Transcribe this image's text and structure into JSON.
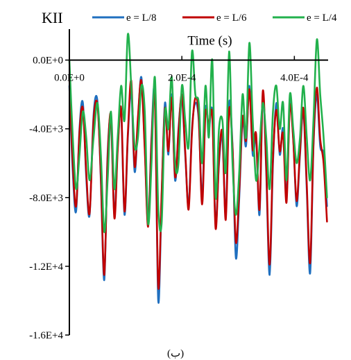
{
  "chart_data": {
    "type": "line",
    "ylabel": "KII",
    "xlabel": "Time (s)",
    "caption": "(ب)",
    "xlim": [
      0,
      0.00046
    ],
    "ylim": [
      -16000,
      1800
    ],
    "x_ticks": [
      {
        "value": 0,
        "label": "0.0E+0"
      },
      {
        "value": 0.0002,
        "label": "2.0E-4"
      },
      {
        "value": 0.0004,
        "label": "4.0E-4"
      }
    ],
    "y_ticks": [
      {
        "value": 0,
        "label": "0.0E+0"
      },
      {
        "value": -4000,
        "label": "-4.0E+3"
      },
      {
        "value": -8000,
        "label": "-8.0E+3"
      },
      {
        "value": -12000,
        "label": "-1.2E+4"
      },
      {
        "value": -16000,
        "label": "-1.6E+4"
      }
    ],
    "legend_position": "top",
    "grid": false,
    "series": [
      {
        "name": "e = L/8",
        "color": "#1f6fbf",
        "x": [
          0,
          6e-06,
          1.2e-05,
          1.8e-05,
          2.4e-05,
          3e-05,
          3.6e-05,
          4.3e-05,
          5e-05,
          5.6e-05,
          6.2e-05,
          6.8e-05,
          7.4e-05,
          8e-05,
          8.6e-05,
          9.2e-05,
          9.8e-05,
          0.000104,
          0.00011,
          0.000116,
          0.000122,
          0.000128,
          0.000134,
          0.00014,
          0.000146,
          0.000152,
          0.000158,
          0.000164,
          0.00017,
          0.000176,
          0.000182,
          0.000188,
          0.000194,
          0.0002,
          0.000206,
          0.000212,
          0.000218,
          0.000224,
          0.00023,
          0.000236,
          0.000242,
          0.000248,
          0.000254,
          0.00026,
          0.000266,
          0.000272,
          0.000278,
          0.000284,
          0.00029,
          0.000296,
          0.000302,
          0.000308,
          0.000314,
          0.00032,
          0.000326,
          0.000332,
          0.000338,
          0.000344,
          0.00035,
          0.000356,
          0.000362,
          0.000368,
          0.000374,
          0.00038,
          0.000386,
          0.000392,
          0.000398,
          0.000404,
          0.00041,
          0.000416,
          0.000422,
          0.000428,
          0.000434,
          0.00044,
          0.000446,
          0.000452,
          0.000458
        ],
        "y": [
          -1500,
          -6500,
          -8800,
          -4000,
          -2500,
          -6800,
          -9000,
          -3200,
          -2400,
          -7000,
          -12800,
          -5500,
          -3500,
          -9000,
          -5000,
          -3000,
          -9000,
          -4500,
          -1800,
          -6500,
          -3500,
          -1000,
          -5000,
          -9500,
          -4500,
          -2000,
          -14000,
          -8000,
          -2500,
          -5500,
          -2000,
          -7000,
          -4000,
          -2200,
          -5500,
          -8500,
          -4000,
          -2500,
          -3500,
          -8000,
          -2800,
          -4000,
          -3000,
          -9500,
          -6000,
          -4500,
          -9000,
          -2500,
          -5000,
          -11500,
          -8000,
          -3500,
          -5000,
          -1500,
          -5500,
          -4500,
          -9000,
          -2000,
          -6500,
          -12500,
          -6000,
          -2500,
          -5500,
          -4000,
          -8000,
          -2500,
          -4500,
          -8500,
          -5500,
          -3000,
          -7500,
          -12400,
          -5000,
          -2000,
          -5000,
          -5500,
          -8500
        ]
      },
      {
        "name": "e = L/6",
        "color": "#c00000",
        "x": [
          0,
          6e-06,
          1.2e-05,
          1.8e-05,
          2.4e-05,
          3e-05,
          3.6e-05,
          4.3e-05,
          5e-05,
          5.6e-05,
          6.2e-05,
          6.8e-05,
          7.4e-05,
          8e-05,
          8.6e-05,
          9.2e-05,
          9.8e-05,
          0.000104,
          0.00011,
          0.000116,
          0.000122,
          0.000128,
          0.000134,
          0.00014,
          0.000146,
          0.000152,
          0.000158,
          0.000164,
          0.00017,
          0.000176,
          0.000182,
          0.000188,
          0.000194,
          0.0002,
          0.000206,
          0.000212,
          0.000218,
          0.000224,
          0.00023,
          0.000236,
          0.000242,
          0.000248,
          0.000254,
          0.00026,
          0.000266,
          0.000272,
          0.000278,
          0.000284,
          0.00029,
          0.000296,
          0.000302,
          0.000308,
          0.000314,
          0.00032,
          0.000326,
          0.000332,
          0.000338,
          0.000344,
          0.00035,
          0.000356,
          0.000362,
          0.000368,
          0.000374,
          0.00038,
          0.000386,
          0.000392,
          0.000398,
          0.000404,
          0.00041,
          0.000416,
          0.000422,
          0.000428,
          0.000434,
          0.00044,
          0.000446,
          0.000452,
          0.000458
        ],
        "y": [
          -1000,
          -6000,
          -8500,
          -4200,
          -2800,
          -6500,
          -8900,
          -3500,
          -2600,
          -6800,
          -12500,
          -5800,
          -3200,
          -9200,
          -5200,
          -2800,
          -8800,
          -4300,
          -1200,
          -6200,
          -3300,
          -1200,
          -5200,
          -9700,
          -4800,
          -2300,
          -13200,
          -7800,
          -2800,
          -5300,
          -2200,
          -6800,
          -4200,
          -2000,
          -5300,
          -8700,
          -4200,
          -2200,
          -3300,
          -8400,
          -3100,
          -3800,
          -3200,
          -9800,
          -5800,
          -4200,
          -9300,
          -2900,
          -5100,
          -10600,
          -7600,
          -3300,
          -4700,
          -1700,
          -5200,
          -4300,
          -8700,
          -1800,
          -6200,
          -11900,
          -5700,
          -2900,
          -5300,
          -4300,
          -8300,
          -2700,
          -4600,
          -8200,
          -5300,
          -2800,
          -7200,
          -11800,
          -4800,
          -1600,
          -4600,
          -6000,
          -9400
        ]
      },
      {
        "name": "e = L/4",
        "color": "#22b14c",
        "x": [
          0,
          6e-06,
          1.2e-05,
          1.8e-05,
          2.4e-05,
          3e-05,
          3.6e-05,
          4.3e-05,
          5e-05,
          5.6e-05,
          6.2e-05,
          6.8e-05,
          7.4e-05,
          8e-05,
          8.6e-05,
          9.2e-05,
          9.8e-05,
          0.000104,
          0.00011,
          0.000116,
          0.000122,
          0.000128,
          0.000134,
          0.00014,
          0.000146,
          0.000152,
          0.000158,
          0.000164,
          0.00017,
          0.000176,
          0.000182,
          0.000188,
          0.000194,
          0.0002,
          0.000206,
          0.000212,
          0.000218,
          0.000224,
          0.00023,
          0.000236,
          0.000242,
          0.000248,
          0.000254,
          0.00026,
          0.000266,
          0.000272,
          0.000278,
          0.000284,
          0.00029,
          0.000296,
          0.000302,
          0.000308,
          0.000314,
          0.00032,
          0.000326,
          0.000332,
          0.000338,
          0.000344,
          0.00035,
          0.000356,
          0.000362,
          0.000368,
          0.000374,
          0.00038,
          0.000386,
          0.000392,
          0.000398,
          0.000404,
          0.00041,
          0.000416,
          0.000422,
          0.000428,
          0.000434,
          0.00044,
          0.000446,
          0.000452,
          0.000458
        ],
        "y": [
          0,
          -4500,
          -7500,
          -5500,
          -3000,
          -4500,
          -7000,
          -4500,
          -2500,
          -5500,
          -10000,
          -7000,
          -3000,
          -7500,
          -4500,
          -1500,
          -3500,
          1500,
          -1500,
          -5000,
          -4500,
          -1500,
          -3000,
          -9500,
          -6000,
          -1000,
          -8500,
          -9500,
          -3000,
          -4000,
          -1000,
          -6000,
          -6000,
          -1500,
          -3500,
          -5000,
          500,
          -2000,
          -2500,
          -6000,
          -1500,
          -4500,
          0,
          -8000,
          -4000,
          -3500,
          -6500,
          500,
          -6000,
          -9000,
          -6500,
          -2000,
          -4500,
          1000,
          -3500,
          -7000,
          -5000,
          -2500,
          -4500,
          -7500,
          -3000,
          -1500,
          -4000,
          -2500,
          -7000,
          -2000,
          -4000,
          -6000,
          -4500,
          -1500,
          -4500,
          -7000,
          -3500,
          1200,
          -2000,
          -4500,
          -8000
        ]
      }
    ]
  }
}
